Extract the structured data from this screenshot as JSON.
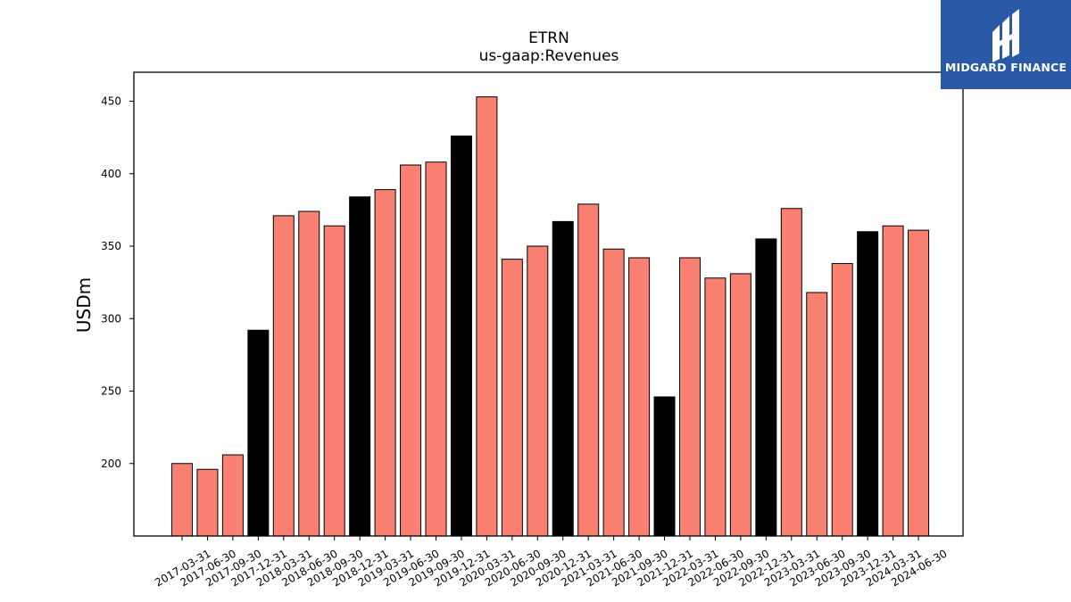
{
  "chart_data": {
    "type": "bar",
    "title": "ETRN",
    "subtitle": "us-gaap:Revenues",
    "xlabel": "",
    "ylabel": "USDm",
    "ylim": [
      150,
      470
    ],
    "yticks": [
      200,
      250,
      300,
      350,
      400,
      450
    ],
    "grid": false,
    "legend": "none",
    "colors": {
      "quarter": "#fa8072",
      "year_end": "#000000",
      "edge": "#000000"
    },
    "categories": [
      "2017-03-31",
      "2017-06-30",
      "2017-09-30",
      "2017-12-31",
      "2018-03-31",
      "2018-06-30",
      "2018-09-30",
      "2018-12-31",
      "2019-03-31",
      "2019-06-30",
      "2019-09-30",
      "2019-12-31",
      "2020-03-31",
      "2020-06-30",
      "2020-09-30",
      "2020-12-31",
      "2021-03-31",
      "2021-06-30",
      "2021-09-30",
      "2021-12-31",
      "2022-03-31",
      "2022-06-30",
      "2022-09-30",
      "2022-12-31",
      "2023-03-31",
      "2023-06-30",
      "2023-09-30",
      "2023-12-31",
      "2024-03-31",
      "2024-06-30"
    ],
    "values": [
      200,
      196,
      206,
      292,
      371,
      374,
      364,
      384,
      389,
      406,
      408,
      426,
      453,
      341,
      350,
      367,
      379,
      348,
      342,
      246,
      342,
      328,
      331,
      355,
      376,
      318,
      338,
      360,
      364,
      361
    ]
  },
  "logo": {
    "text": "MIDGARD FINANCE",
    "background": "#2a59a8"
  }
}
